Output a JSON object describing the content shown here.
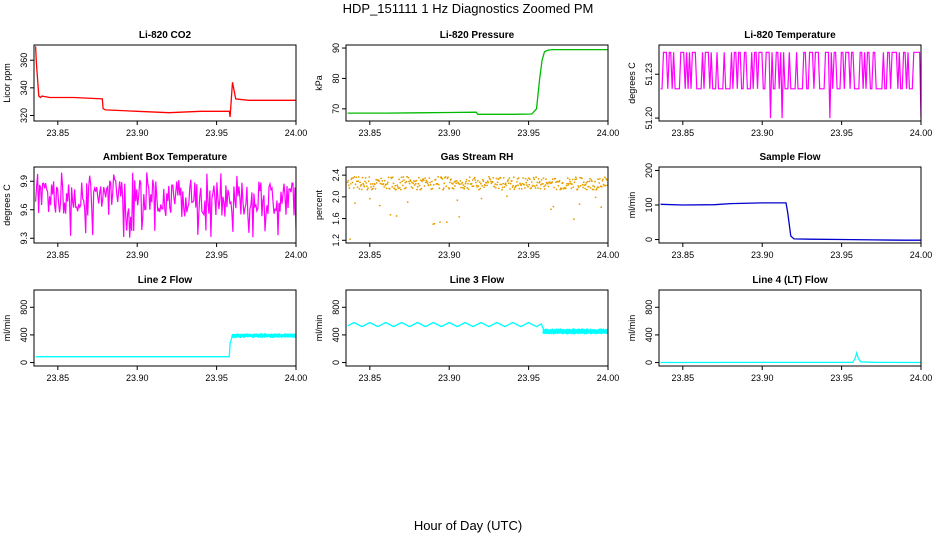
{
  "figure": {
    "title": "HDP_151111  1 Hz Diagnostics Zoomed PM",
    "xlabel": "Hour of Day (UTC)"
  },
  "chart_data": [
    {
      "type": "line",
      "title": "Li-820 CO2",
      "ylabel": "Licor ppm",
      "xlim": [
        23.835,
        24.0
      ],
      "ylim": [
        316,
        371
      ],
      "xticks": [
        "23.85",
        "23.90",
        "23.95",
        "24.00"
      ],
      "yticks": [
        "320",
        "340",
        "360"
      ],
      "color": "#ff0000",
      "style": "line",
      "series": [
        {
          "name": "CO2",
          "x": [
            23.836,
            23.8365,
            23.838,
            23.839,
            23.84,
            23.845,
            23.86,
            23.878,
            23.8785,
            23.88,
            23.9,
            23.92,
            23.94,
            23.958,
            23.9585,
            23.9595,
            23.96,
            23.962,
            23.97,
            23.99,
            24.0
          ],
          "y": [
            370,
            358,
            334,
            333,
            334,
            333,
            333,
            332,
            325,
            324,
            323,
            322,
            323,
            323,
            319,
            336,
            344,
            332,
            331,
            331,
            331
          ]
        }
      ]
    },
    {
      "type": "line",
      "title": "Li-820 Pressure",
      "ylabel": "kPa",
      "xlim": [
        23.835,
        24.0
      ],
      "ylim": [
        66,
        91
      ],
      "xticks": [
        "23.85",
        "23.90",
        "23.95",
        "24.00"
      ],
      "yticks": [
        "70",
        "80",
        "90"
      ],
      "color": "#00bb00",
      "style": "line",
      "series": [
        {
          "name": "Pressure",
          "x": [
            23.836,
            23.86,
            23.88,
            23.9,
            23.917,
            23.918,
            23.94,
            23.952,
            23.955,
            23.957,
            23.9585,
            23.96,
            23.962,
            23.965,
            23.98,
            24.0
          ],
          "y": [
            68.6,
            68.6,
            68.7,
            68.8,
            68.9,
            68.2,
            68.2,
            68.3,
            70,
            80,
            86,
            88.8,
            89.3,
            89.5,
            89.5,
            89.5
          ]
        }
      ]
    },
    {
      "type": "line",
      "title": "Li-820 Temperature",
      "ylabel": "degrees C",
      "xlim": [
        23.835,
        24.0
      ],
      "ylim": [
        51.198,
        51.25
      ],
      "xticks": [
        "23.85",
        "23.90",
        "23.95",
        "24.00"
      ],
      "yticks": [
        "51.20",
        "51.23"
      ],
      "color": "#ff00ff",
      "style": "toggle",
      "high": 51.245,
      "low": 51.22,
      "low_spike": 51.2,
      "series": [
        {
          "name": "Temperature",
          "x": [
            23.836,
            24.0
          ],
          "y": [
            51.245,
            51.22
          ]
        }
      ]
    },
    {
      "type": "line",
      "title": "Ambient Box Temperature",
      "ylabel": "degrees C",
      "xlim": [
        23.835,
        24.0
      ],
      "ylim": [
        9.25,
        10.05
      ],
      "xticks": [
        "23.85",
        "23.90",
        "23.95",
        "24.00"
      ],
      "yticks": [
        "9.3",
        "9.6",
        "9.9"
      ],
      "color": "#ff00ff",
      "style": "noise",
      "base": 9.72,
      "amp": 0.2,
      "series": [
        {
          "name": "Box Temperature",
          "x": [
            23.836,
            24.0
          ],
          "y": [
            9.3,
            10.0
          ]
        }
      ]
    },
    {
      "type": "scatter",
      "title": "Gas Stream RH",
      "ylabel": "percent",
      "xlim": [
        23.835,
        24.0
      ],
      "ylim": [
        1.15,
        2.55
      ],
      "xticks": [
        "23.85",
        "23.90",
        "23.95",
        "24.00"
      ],
      "yticks": [
        "1.2",
        "1.6",
        "2.0",
        "2.4"
      ],
      "color": "#e6a000",
      "style": "dots",
      "base": 2.25,
      "amp": 0.12,
      "series": [
        {
          "name": "RH",
          "x": [
            23.836,
            24.0
          ],
          "y": [
            1.22,
            2.5
          ]
        }
      ]
    },
    {
      "type": "line",
      "title": "Sample Flow",
      "ylabel": "ml/min",
      "xlim": [
        23.835,
        24.0
      ],
      "ylim": [
        -10,
        210
      ],
      "xticks": [
        "23.85",
        "23.90",
        "23.95",
        "24.00"
      ],
      "yticks": [
        "0",
        "100",
        "200"
      ],
      "color": "#0000cc",
      "style": "line",
      "series": [
        {
          "name": "Sample Flow",
          "x": [
            23.836,
            23.85,
            23.87,
            23.88,
            23.9,
            23.915,
            23.916,
            23.918,
            23.92,
            23.93,
            23.95,
            23.97,
            23.99,
            24.0
          ],
          "y": [
            102,
            100,
            101,
            104,
            106,
            106,
            80,
            10,
            2,
            1,
            0,
            -1,
            -2,
            -2
          ]
        }
      ]
    },
    {
      "type": "line",
      "title": "Line 2 Flow",
      "ylabel": "ml/min",
      "xlim": [
        23.835,
        24.0
      ],
      "ylim": [
        -50,
        1050
      ],
      "xticks": [
        "23.85",
        "23.90",
        "23.95",
        "24.00"
      ],
      "yticks": [
        "0",
        "400",
        "800"
      ],
      "color": "#00ffff",
      "style": "line",
      "series": [
        {
          "name": "Line 2 Flow",
          "x": [
            23.836,
            23.9,
            23.958,
            23.9585,
            23.96,
            23.98,
            24.0
          ],
          "y": [
            85,
            85,
            85,
            280,
            390,
            390,
            390
          ]
        }
      ]
    },
    {
      "type": "line",
      "title": "Line 3 Flow",
      "ylabel": "ml/min",
      "xlim": [
        23.835,
        24.0
      ],
      "ylim": [
        -50,
        1050
      ],
      "xticks": [
        "23.85",
        "23.90",
        "23.95",
        "24.00"
      ],
      "yticks": [
        "0",
        "400",
        "800"
      ],
      "color": "#00ffff",
      "style": "line",
      "series": [
        {
          "name": "Line 3 Flow",
          "x": [
            23.836,
            23.84,
            23.845,
            23.85,
            23.855,
            23.86,
            23.865,
            23.87,
            23.875,
            23.88,
            23.885,
            23.89,
            23.895,
            23.9,
            23.905,
            23.91,
            23.915,
            23.92,
            23.925,
            23.93,
            23.935,
            23.94,
            23.945,
            23.95,
            23.955,
            23.958,
            23.96,
            23.97,
            23.98,
            23.99,
            24.0
          ],
          "y": [
            530,
            580,
            520,
            580,
            520,
            580,
            520,
            580,
            520,
            580,
            520,
            580,
            520,
            580,
            520,
            580,
            520,
            580,
            520,
            580,
            520,
            580,
            520,
            580,
            520,
            560,
            450,
            450,
            450,
            450,
            450
          ]
        }
      ]
    },
    {
      "type": "line",
      "title": "Line 4 (LT) Flow",
      "ylabel": "ml/min",
      "xlim": [
        23.835,
        24.0
      ],
      "ylim": [
        -50,
        1050
      ],
      "xticks": [
        "23.85",
        "23.90",
        "23.95",
        "24.00"
      ],
      "yticks": [
        "0",
        "400",
        "800"
      ],
      "color": "#00ffff",
      "style": "line",
      "series": [
        {
          "name": "Line 4 Flow",
          "x": [
            23.836,
            23.9,
            23.957,
            23.9585,
            23.9595,
            23.9605,
            23.962,
            23.97,
            24.0
          ],
          "y": [
            0,
            2,
            2,
            60,
            140,
            60,
            10,
            3,
            1
          ]
        }
      ]
    }
  ]
}
